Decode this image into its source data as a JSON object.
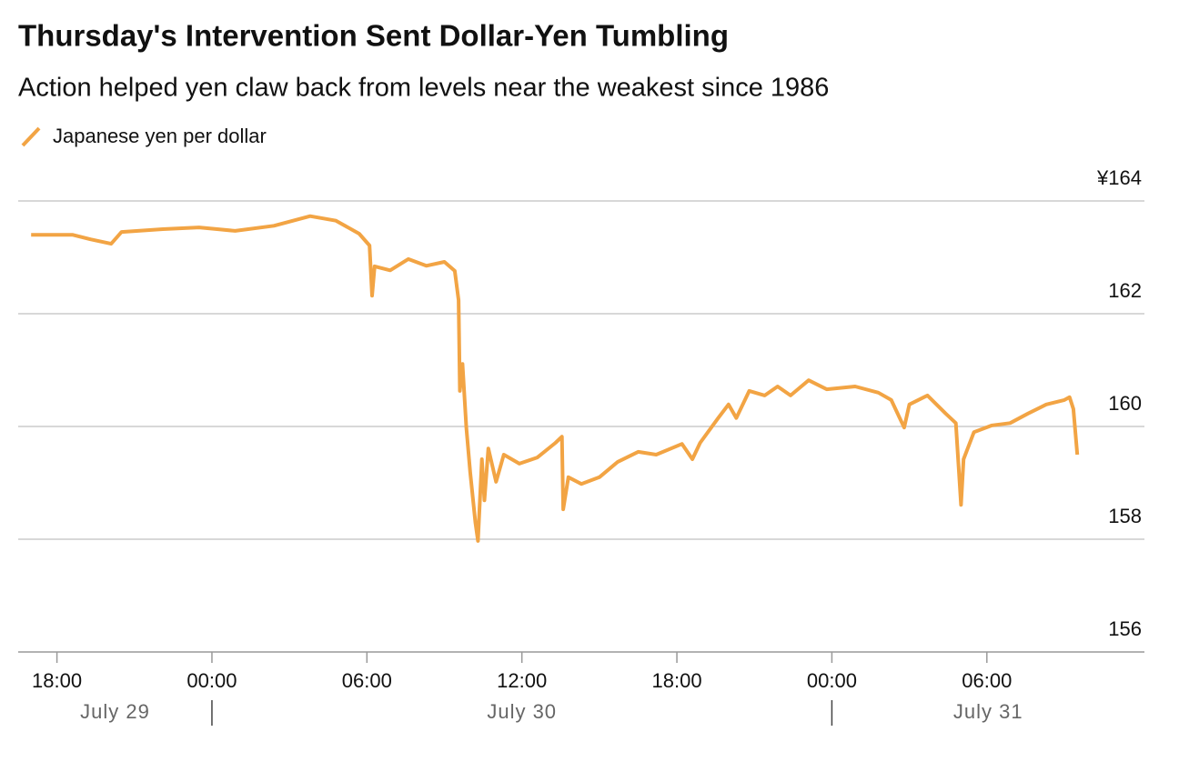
{
  "chart_data": {
    "type": "line",
    "title": "Thursday's Intervention Sent Dollar-Yen Tumbling",
    "subtitle": "Action helped yen claw back from levels near the weakest since 1986",
    "x": [
      17.0,
      18.6,
      19.3,
      20.1,
      20.5,
      22.1,
      23.5,
      24.9,
      26.4,
      27.8,
      28.8,
      29.7,
      30.1,
      30.2,
      30.3,
      30.9,
      31.6,
      32.3,
      33.0,
      33.4,
      33.55,
      33.6,
      33.7,
      33.85,
      34.0,
      34.2,
      34.3,
      34.45,
      34.55,
      34.7,
      35.0,
      35.3,
      35.9,
      36.6,
      37.3,
      37.55,
      37.6,
      37.8,
      38.3,
      39.0,
      39.7,
      40.5,
      41.2,
      42.2,
      42.6,
      42.9,
      43.6,
      44.0,
      44.3,
      44.8,
      45.4,
      45.9,
      46.4,
      47.1,
      47.8,
      48.9,
      49.8,
      50.3,
      50.8,
      51.0,
      51.7,
      52.4,
      52.8,
      53.0,
      53.1,
      53.5,
      54.2,
      54.9,
      55.6,
      56.3,
      57.0,
      57.2,
      57.35,
      57.5
    ],
    "series": [
      {
        "name": "Japanese yen per dollar",
        "color": "#f2a444",
        "values": [
          163.4,
          163.4,
          163.32,
          163.24,
          163.45,
          163.5,
          163.53,
          163.47,
          163.56,
          163.73,
          163.65,
          163.42,
          163.21,
          162.32,
          162.84,
          162.77,
          162.97,
          162.85,
          162.92,
          162.76,
          162.24,
          160.63,
          161.11,
          159.98,
          159.18,
          158.29,
          157.97,
          159.42,
          158.69,
          159.61,
          159.02,
          159.5,
          159.34,
          159.45,
          159.71,
          159.82,
          158.53,
          159.1,
          158.98,
          159.1,
          159.37,
          159.55,
          159.5,
          159.69,
          159.42,
          159.71,
          160.15,
          160.39,
          160.15,
          160.63,
          160.55,
          160.71,
          160.55,
          160.82,
          160.66,
          160.71,
          160.6,
          160.47,
          159.98,
          160.39,
          160.55,
          160.23,
          160.06,
          158.61,
          159.42,
          159.9,
          160.02,
          160.06,
          160.23,
          160.39,
          160.47,
          160.52,
          160.31,
          159.5
        ]
      }
    ],
    "xlim": [
      16.5,
      60.1
    ],
    "xticks": [
      {
        "value": 18,
        "label": "18:00"
      },
      {
        "value": 24,
        "label": "00:00"
      },
      {
        "value": 30,
        "label": "06:00"
      },
      {
        "value": 36,
        "label": "12:00"
      },
      {
        "value": 42,
        "label": "18:00"
      },
      {
        "value": 48,
        "label": "00:00"
      },
      {
        "value": 54,
        "label": "06:00"
      }
    ],
    "ylim": [
      156,
      164
    ],
    "yticks": [
      {
        "value": 164,
        "label": "¥164"
      },
      162,
      160,
      158,
      156
    ],
    "date_labels": [
      "July 29",
      "July 30",
      "July 31"
    ],
    "date_separators": [
      24,
      48
    ],
    "grid": true
  }
}
